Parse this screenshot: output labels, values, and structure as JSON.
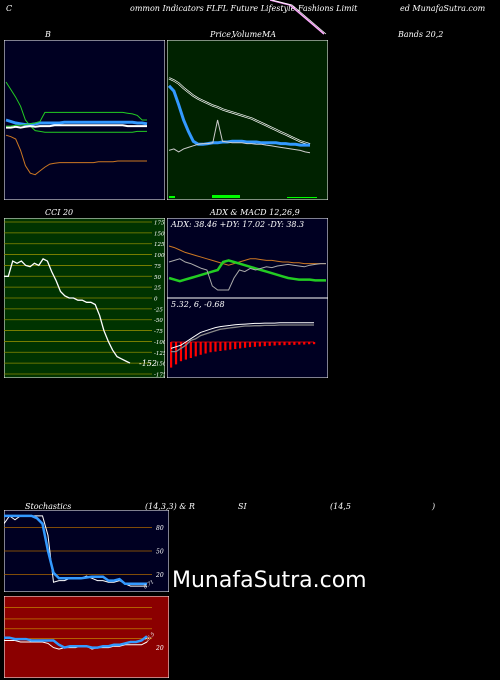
{
  "header": {
    "left": "C",
    "center": "ommon  Indicators FLFL  Future   Lifestyle   Fashions Limit",
    "right": "ed MunafaSutra.com"
  },
  "colors": {
    "bg": "#000000",
    "dark_panel": "#000022",
    "green_panel": "#002200",
    "olive_panel": "#003300",
    "red_panel": "#8b0000",
    "white": "#ffffff",
    "blue": "#3399ff",
    "green": "#22cc22",
    "orange": "#cc7722",
    "gray": "#aaaaaa",
    "red": "#ff0000"
  },
  "labels": {
    "bb": "B",
    "price_ma": "Price,",
    "volume": "Volume",
    "ma": "MA",
    "bands": "Bands 20,2",
    "cci": "CCI 20",
    "adx_macd": "ADX  & MACD 12,26,9",
    "adx_values": "ADX: 38.46  +DY: 17.02  -DY: 38.3",
    "macd_values": "5.32,  6,  -0.68",
    "stoch": "Stochastics",
    "stoch_params": "(14,3,3) & R",
    "si": "SI",
    "si_params": "(14,5",
    "si_close": ")",
    "watermark": "MunafaSutra.com"
  },
  "chart_data": [
    {
      "type": "line",
      "name": "bollinger",
      "x": [
        0,
        1,
        2,
        3,
        4,
        5,
        6,
        7,
        8,
        9,
        10,
        11,
        12,
        13,
        14,
        15,
        16,
        17,
        18,
        19,
        20,
        21,
        22,
        23,
        24,
        25,
        26,
        27,
        28,
        29
      ],
      "series": [
        {
          "values": [
            150,
            140,
            130,
            118,
            100,
            92,
            86,
            85,
            84,
            84,
            84,
            84,
            84,
            84,
            84,
            84,
            84,
            84,
            84,
            84,
            84,
            84,
            84,
            84,
            84,
            84,
            84,
            85,
            85,
            85
          ]
        },
        {
          "values": [
            100,
            98,
            96,
            95,
            94,
            94,
            95,
            96,
            96,
            96,
            96,
            96,
            97,
            97,
            97,
            97,
            97,
            97,
            97,
            97,
            97,
            97,
            97,
            97,
            97,
            97,
            97,
            96,
            96,
            95
          ]
        },
        {
          "values": [
            80,
            78,
            75,
            60,
            40,
            30,
            28,
            33,
            38,
            42,
            43,
            44,
            44,
            44,
            44,
            44,
            44,
            44,
            44,
            45,
            45,
            45,
            45,
            46,
            46,
            46,
            46,
            46,
            46,
            46
          ]
        },
        {
          "values": [
            90,
            90,
            91,
            90,
            91,
            92,
            91,
            92,
            92,
            92,
            93,
            93,
            93,
            93,
            93,
            93,
            93,
            93,
            93,
            93,
            93,
            93,
            93,
            93,
            93,
            92,
            92,
            92,
            92,
            92
          ]
        },
        {
          "values": [
            92,
            92,
            93,
            93,
            94,
            95,
            96,
            98,
            110,
            110,
            110,
            110,
            110,
            110,
            110,
            110,
            110,
            110,
            110,
            110,
            110,
            110,
            110,
            110,
            110,
            109,
            108,
            106,
            100,
            100
          ]
        }
      ],
      "ylim": [
        0,
        200
      ]
    },
    {
      "type": "line",
      "name": "price_ma",
      "x": [
        0,
        1,
        2,
        3,
        4,
        5,
        6,
        7,
        8,
        9,
        10,
        11,
        12,
        13,
        14,
        15,
        16,
        17,
        18,
        19,
        20,
        21,
        22,
        23,
        24,
        25,
        26,
        27,
        28,
        29
      ],
      "series": [
        {
          "values": [
            145,
            138,
            120,
            100,
            85,
            72,
            68,
            68,
            69,
            70,
            70,
            71,
            71,
            72,
            72,
            72,
            71,
            71,
            71,
            70,
            70,
            70,
            70,
            69,
            69,
            68,
            68,
            67,
            67,
            67
          ]
        },
        {
          "values": [
            155,
            152,
            148,
            142,
            137,
            132,
            128,
            125,
            122,
            119,
            117,
            114,
            112,
            110,
            108,
            106,
            104,
            102,
            99,
            96,
            93,
            90,
            87,
            84,
            81,
            78,
            75,
            72,
            70,
            68
          ]
        },
        {
          "values": [
            60,
            62,
            58,
            62,
            64,
            66,
            68,
            69,
            69,
            70,
            100,
            72,
            71,
            70,
            70,
            70,
            69,
            69,
            68,
            68,
            67,
            66,
            65,
            64,
            63,
            62,
            61,
            60,
            58,
            57
          ]
        }
      ],
      "ylim": [
        0,
        200
      ]
    },
    {
      "type": "line",
      "name": "cci",
      "x": [
        0,
        1,
        2,
        3,
        4,
        5,
        6,
        7,
        8,
        9,
        10,
        11,
        12,
        13,
        14,
        15,
        16,
        17,
        18,
        19,
        20,
        21,
        22,
        23,
        24,
        25,
        26,
        27,
        28,
        29
      ],
      "values": [
        50,
        50,
        85,
        80,
        85,
        75,
        72,
        80,
        75,
        90,
        85,
        60,
        40,
        15,
        5,
        0,
        0,
        -5,
        -5,
        -10,
        -10,
        -15,
        -40,
        -75,
        -100,
        -120,
        -135,
        -140,
        -145,
        -150
      ],
      "last_label": "-152",
      "ticks": [
        175,
        150,
        125,
        100,
        75,
        50,
        25,
        0,
        -25,
        -50,
        -75,
        -100,
        -125,
        -150,
        -175
      ],
      "ylim": [
        -175,
        175
      ]
    },
    {
      "type": "line",
      "name": "adx",
      "x": [
        0,
        1,
        2,
        3,
        4,
        5,
        6,
        7,
        8,
        9,
        10,
        11,
        12,
        13,
        14,
        15,
        16,
        17,
        18,
        19,
        20,
        21,
        22,
        23,
        24,
        25,
        26,
        27,
        28,
        29
      ],
      "series": [
        {
          "values": [
            60,
            58,
            55,
            52,
            50,
            48,
            46,
            44,
            42,
            40,
            38,
            36,
            38,
            40,
            42,
            44,
            44,
            43,
            42,
            42,
            41,
            40,
            40,
            39,
            39,
            38,
            38,
            38,
            38,
            38
          ]
        },
        {
          "values": [
            20,
            18,
            16,
            18,
            20,
            22,
            24,
            26,
            28,
            30,
            40,
            42,
            40,
            38,
            36,
            34,
            32,
            30,
            28,
            26,
            24,
            22,
            20,
            19,
            18,
            18,
            18,
            17,
            17,
            17
          ]
        },
        {
          "values": [
            40,
            42,
            44,
            40,
            38,
            35,
            32,
            30,
            10,
            5,
            5,
            5,
            20,
            30,
            28,
            32,
            30,
            32,
            34,
            33,
            35,
            36,
            37,
            36,
            35,
            34,
            36,
            37,
            38,
            38
          ]
        }
      ],
      "ylim": [
        0,
        80
      ]
    },
    {
      "type": "bar",
      "name": "macd",
      "x": [
        0,
        1,
        2,
        3,
        4,
        5,
        6,
        7,
        8,
        9,
        10,
        11,
        12,
        13,
        14,
        15,
        16,
        17,
        18,
        19,
        20,
        21,
        22,
        23,
        24,
        25,
        26,
        27,
        28,
        29
      ],
      "values": [
        -8,
        -7,
        -6,
        -5.5,
        -5,
        -4.5,
        -4,
        -3.6,
        -3.2,
        -3,
        -2.8,
        -2.6,
        -2.4,
        -2.2,
        -2,
        -1.8,
        -1.6,
        -1.5,
        -1.4,
        -1.3,
        -1.2,
        -1.1,
        -1,
        -1,
        -0.9,
        -0.9,
        -0.8,
        -0.8,
        -0.7,
        -0.68
      ],
      "series": [
        {
          "values": [
            -2,
            -1.5,
            -1,
            0,
            1,
            2,
            3,
            3.5,
            4,
            4.5,
            4.8,
            5,
            5.2,
            5.4,
            5.5,
            5.6,
            5.7,
            5.8,
            5.8,
            5.9,
            5.9,
            5.9,
            6,
            6,
            6,
            6,
            6,
            6,
            6,
            6
          ]
        },
        {
          "values": [
            -3,
            -3,
            -2,
            -1,
            0.5,
            1,
            2,
            2.5,
            3,
            3.5,
            4,
            4.2,
            4.4,
            4.6,
            4.8,
            5,
            5,
            5.1,
            5.1,
            5.2,
            5.2,
            5.2,
            5.3,
            5.3,
            5.3,
            5.3,
            5.3,
            5.3,
            5.3,
            5.32
          ]
        }
      ],
      "ylim": [
        -10,
        10
      ]
    },
    {
      "type": "line",
      "name": "stochastics",
      "x": [
        0,
        1,
        2,
        3,
        4,
        5,
        6,
        7,
        8,
        9,
        10,
        11,
        12,
        13,
        14,
        15,
        16,
        17,
        18,
        19,
        20,
        21,
        22,
        23,
        24,
        25,
        26
      ],
      "series": [
        {
          "values": [
            95,
            95,
            95,
            95,
            95,
            95,
            92,
            85,
            50,
            22,
            15,
            15,
            15,
            15,
            15,
            16,
            17,
            17,
            17,
            12,
            12,
            14,
            8,
            8,
            8,
            8,
            8
          ]
        },
        {
          "values": [
            85,
            95,
            90,
            95,
            95,
            95,
            95,
            95,
            70,
            10,
            12,
            12,
            15,
            15,
            15,
            18,
            15,
            12,
            12,
            10,
            10,
            12,
            8,
            5,
            5,
            5,
            5
          ]
        }
      ],
      "ticks": [
        80,
        50,
        20
      ],
      "ylim": [
        0,
        100
      ],
      "last_label": "8.71"
    },
    {
      "type": "line",
      "name": "rsi",
      "x": [
        0,
        1,
        2,
        3,
        4,
        5,
        6,
        7,
        8,
        9,
        10,
        11,
        12,
        13,
        14,
        15,
        16,
        17,
        18,
        19,
        20,
        21,
        22,
        23,
        24,
        25,
        26
      ],
      "series": [
        {
          "values": [
            27,
            27,
            26,
            26,
            26,
            25,
            25,
            25,
            25,
            25,
            22,
            20,
            21,
            21,
            21,
            21,
            20,
            20,
            21,
            21,
            22,
            22,
            23,
            24,
            24,
            25,
            28
          ]
        },
        {
          "values": [
            25,
            25,
            25,
            24,
            24,
            24,
            24,
            24,
            23,
            20,
            19,
            20,
            20,
            20,
            21,
            21,
            19,
            20,
            20,
            20,
            21,
            21,
            22,
            22,
            22,
            22,
            24
          ]
        }
      ],
      "ticks": [
        20
      ],
      "ylim": [
        0,
        55
      ],
      "last_label": "26.5"
    }
  ]
}
